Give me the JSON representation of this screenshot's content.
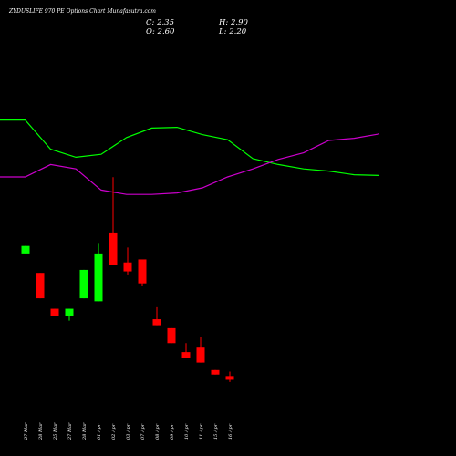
{
  "chart_data": {
    "type": "candlestick",
    "title": "ZYDUSLIFE 970 PE Options Chart Munafasutra.com",
    "ohlc_readout": {
      "close": "C: 2.35",
      "high": "H: 2.90",
      "open": "O: 2.60",
      "low": "L: 2.20"
    },
    "price_range": [
      0,
      12.5
    ],
    "categories": [
      "27 Mar",
      "28 Mar",
      "25 Mar",
      "27 Mar",
      "28 Mar",
      "01 Apr",
      "02 Apr",
      "03 Apr",
      "07 Apr",
      "08 Apr",
      "09 Apr",
      "10 Apr",
      "11 Apr",
      "15 Apr",
      "16 Apr"
    ],
    "candles": [
      {
        "open": 10.8,
        "high": 11.3,
        "low": 10.8,
        "close": 11.3,
        "color": "green"
      },
      {
        "open": 9.5,
        "high": 9.5,
        "low": 7.8,
        "close": 7.8,
        "color": "red"
      },
      {
        "open": 7.1,
        "high": 7.1,
        "low": 6.6,
        "close": 6.6,
        "color": "red"
      },
      {
        "open": 6.6,
        "high": 7.1,
        "low": 6.3,
        "close": 7.1,
        "color": "green"
      },
      {
        "open": 7.8,
        "high": 9.7,
        "low": 7.8,
        "close": 9.7,
        "color": "green"
      },
      {
        "open": 7.6,
        "high": 11.5,
        "low": 7.6,
        "close": 10.8,
        "color": "green"
      },
      {
        "open": 12.2,
        "high": 15.9,
        "low": 10.0,
        "close": 10.0,
        "color": "red"
      },
      {
        "open": 10.2,
        "high": 11.2,
        "low": 9.4,
        "close": 9.6,
        "color": "red"
      },
      {
        "open": 10.4,
        "high": 10.4,
        "low": 8.6,
        "close": 8.8,
        "color": "red"
      },
      {
        "open": 6.4,
        "high": 7.2,
        "low": 6.0,
        "close": 6.0,
        "color": "red"
      },
      {
        "open": 5.8,
        "high": 5.8,
        "low": 4.8,
        "close": 4.8,
        "color": "red"
      },
      {
        "open": 4.2,
        "high": 4.8,
        "low": 3.8,
        "close": 3.8,
        "color": "red"
      },
      {
        "open": 4.5,
        "high": 5.2,
        "low": 3.5,
        "close": 3.5,
        "color": "red"
      },
      {
        "open": 3.0,
        "high": 3.0,
        "low": 2.7,
        "close": 2.7,
        "color": "red"
      },
      {
        "open": 2.6,
        "high": 2.9,
        "low": 2.2,
        "close": 2.35,
        "color": "red"
      }
    ],
    "indicator_series": [
      {
        "color": "#00ff00",
        "values": [
          0.98,
          0.98,
          0.58,
          0.47,
          0.51,
          0.74,
          0.87,
          0.88,
          0.78,
          0.71,
          0.45,
          0.37,
          0.31,
          0.28,
          0.23,
          0.22
        ]
      },
      {
        "color": "#cc00cc",
        "values": [
          0.2,
          0.2,
          0.37,
          0.31,
          0.02,
          -0.04,
          -0.04,
          -0.02,
          0.05,
          0.2,
          0.31,
          0.44,
          0.53,
          0.7,
          0.73,
          0.79
        ]
      }
    ],
    "indicator_range": [
      -0.5,
      1.5
    ],
    "colors": {
      "background": "#000000",
      "up": "#00ff00",
      "down": "#ff0000",
      "text": "#ffffff"
    },
    "grid": false
  }
}
